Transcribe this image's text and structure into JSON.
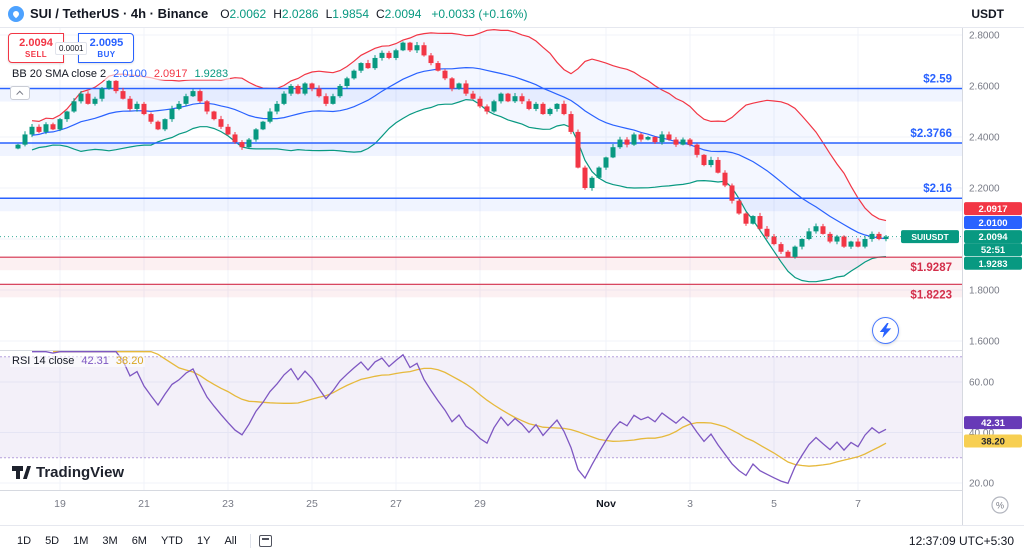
{
  "header": {
    "symbol_title": "SUI / TetherUS · 4h · Binance",
    "ohlc": [
      {
        "label": "O",
        "value": "2.0062"
      },
      {
        "label": "H",
        "value": "2.0286"
      },
      {
        "label": "L",
        "value": "1.9854"
      },
      {
        "label": "C",
        "value": "2.0094"
      }
    ],
    "change": "+0.0033 (+0.16%)",
    "currency": "USDT"
  },
  "trade_widget": {
    "sell_price": "2.0094",
    "sell_label": "SELL",
    "spread": "0.0001",
    "buy_price": "2.0095",
    "buy_label": "BUY"
  },
  "bb_legend": {
    "title": "BB 20 SMA close 2",
    "basis": "2.0100",
    "upper": "2.0917",
    "lower": "1.9283"
  },
  "rsi_legend": {
    "title": "RSI 14 close",
    "rsi_value": "42.31",
    "ma_value": "38.20"
  },
  "price_scale": {
    "ticks": [
      "2.8000",
      "2.6000",
      "2.4000",
      "2.2000",
      "2.0000",
      "1.8000",
      "1.6000"
    ],
    "tick_values": [
      2.8,
      2.6,
      2.4,
      2.2,
      2.0,
      1.8,
      1.6
    ],
    "symbol_tag": "SUIUSDT",
    "badges": [
      {
        "name": "bb-upper",
        "text": "2.0917",
        "value": 2.0917,
        "bg": "#f23645"
      },
      {
        "name": "bb-basis",
        "text": "2.0100",
        "value": 2.01,
        "bg": "#2962ff"
      },
      {
        "name": "last-price",
        "text": "2.0094",
        "value": 2.0094,
        "bg": "#089981"
      },
      {
        "name": "countdown",
        "text": "52:51",
        "value": null,
        "bg": "#089981"
      },
      {
        "name": "bb-lower",
        "text": "1.9283",
        "value": 1.9283,
        "bg": "#089981"
      }
    ]
  },
  "levels": [
    {
      "label": "$2.59",
      "value": 2.59,
      "color": "#2962ff",
      "label_side": "above"
    },
    {
      "label": "$2.3766",
      "value": 2.3766,
      "color": "#2962ff",
      "label_side": "above"
    },
    {
      "label": "$2.16",
      "value": 2.16,
      "color": "#2962ff",
      "label_side": "above"
    },
    {
      "label": "$1.9287",
      "value": 1.9287,
      "color": "#d32f4b",
      "label_side": "below"
    },
    {
      "label": "$1.8223",
      "value": 1.8223,
      "color": "#d32f4b",
      "label_side": "below"
    }
  ],
  "rsi_scale": {
    "ticks": [
      "60.00",
      "40.00",
      "20.00"
    ],
    "tick_values": [
      60,
      40,
      20
    ],
    "badges": [
      {
        "name": "rsi",
        "text": "42.31",
        "value": 42.31,
        "bg": "#673ab7",
        "fg": "#ffffff"
      },
      {
        "name": "rsi-ma",
        "text": "38.20",
        "value": 38.2,
        "bg": "#f7cf52",
        "fg": "#1e222d"
      }
    ]
  },
  "x_axis": {
    "labels": [
      {
        "text": "19",
        "candle": 6
      },
      {
        "text": "21",
        "candle": 18
      },
      {
        "text": "23",
        "candle": 30
      },
      {
        "text": "25",
        "candle": 42
      },
      {
        "text": "27",
        "candle": 54
      },
      {
        "text": "29",
        "candle": 66
      },
      {
        "text": "Nov",
        "candle": 84
      },
      {
        "text": "3",
        "candle": 96
      },
      {
        "text": "5",
        "candle": 108
      },
      {
        "text": "7",
        "candle": 120
      }
    ],
    "percent_icon": "%"
  },
  "toolbar": {
    "ranges": [
      "1D",
      "5D",
      "1M",
      "3M",
      "6M",
      "YTD",
      "1Y",
      "All"
    ],
    "clock": "12:37:09 UTC+5:30"
  },
  "logo": {
    "text": "TradingView"
  },
  "chart_data": {
    "type": "candlestick",
    "symbol": "SUIUSDT",
    "interval": "4h",
    "exchange": "Binance",
    "ylim": [
      1.6,
      2.8
    ],
    "last_close": 2.0094,
    "colors": {
      "up": "#089981",
      "down": "#f23645"
    },
    "closes": [
      2.37,
      2.41,
      2.44,
      2.42,
      2.45,
      2.43,
      2.47,
      2.5,
      2.54,
      2.57,
      2.53,
      2.55,
      2.59,
      2.62,
      2.58,
      2.55,
      2.51,
      2.53,
      2.49,
      2.46,
      2.43,
      2.47,
      2.51,
      2.53,
      2.56,
      2.58,
      2.54,
      2.5,
      2.47,
      2.44,
      2.41,
      2.38,
      2.36,
      2.39,
      2.43,
      2.46,
      2.5,
      2.53,
      2.57,
      2.6,
      2.57,
      2.61,
      2.59,
      2.56,
      2.53,
      2.56,
      2.6,
      2.63,
      2.66,
      2.69,
      2.67,
      2.71,
      2.73,
      2.71,
      2.74,
      2.77,
      2.74,
      2.76,
      2.72,
      2.69,
      2.66,
      2.63,
      2.59,
      2.61,
      2.57,
      2.55,
      2.52,
      2.5,
      2.54,
      2.57,
      2.54,
      2.56,
      2.54,
      2.51,
      2.53,
      2.49,
      2.51,
      2.53,
      2.49,
      2.42,
      2.28,
      2.2,
      2.24,
      2.28,
      2.32,
      2.36,
      2.39,
      2.37,
      2.41,
      2.39,
      2.4,
      2.38,
      2.41,
      2.39,
      2.37,
      2.39,
      2.37,
      2.33,
      2.29,
      2.31,
      2.26,
      2.21,
      2.15,
      2.1,
      2.06,
      2.09,
      2.04,
      2.01,
      1.98,
      1.95,
      1.93,
      1.97,
      2.0,
      2.03,
      2.05,
      2.02,
      1.99,
      2.01,
      1.97,
      1.99,
      1.97,
      2.0,
      2.02,
      2.0,
      2.0094
    ],
    "indicators": {
      "bollinger": {
        "period": 20,
        "stddev": 2,
        "basis_color": "#2962ff",
        "upper_color": "#f23645",
        "lower_color": "#089981",
        "basis": 2.01,
        "upper": 2.0917,
        "lower": 1.9283
      },
      "rsi": {
        "period": 14,
        "color": "#7e57c2",
        "ma_color": "#e6b93c",
        "value": 42.31,
        "ma_value": 38.2,
        "band": [
          30,
          70
        ],
        "visible_ticks": [
          60,
          40,
          20
        ]
      }
    }
  }
}
